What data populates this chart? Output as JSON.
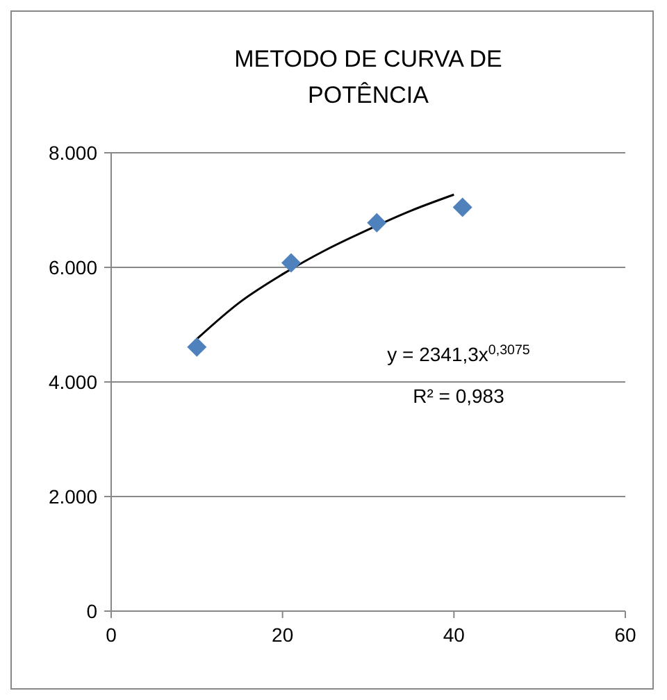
{
  "chart_data": {
    "type": "scatter",
    "title": "METODO DE CURVA DE POTÊNCIA",
    "xlim": [
      0,
      60
    ],
    "xticks": [
      0,
      20,
      40,
      60
    ],
    "ylim": [
      0,
      8000
    ],
    "yticks": [
      0,
      {
        "value": 2000,
        "label": "2.000"
      },
      {
        "value": 4000,
        "label": "4.000"
      },
      {
        "value": 6000,
        "label": "6.000"
      },
      {
        "value": 8000,
        "label": "8.000"
      }
    ],
    "grid": "y",
    "series": [
      {
        "type": "line",
        "color": "#000000",
        "marker": "none",
        "x": [
          10,
          15,
          20,
          25,
          30,
          35,
          40
        ],
        "values": [
          4750,
          5390,
          5880,
          6300,
          6660,
          6990,
          7270
        ]
      },
      {
        "color": "#4f81bd",
        "marker": "diamond",
        "x": [
          10,
          21,
          31,
          41
        ],
        "values": [
          4610,
          6080,
          6780,
          7050
        ]
      }
    ],
    "annotations": [
      "y = 2341,3x$^{0,3075}$",
      "R² = 0,983"
    ]
  }
}
